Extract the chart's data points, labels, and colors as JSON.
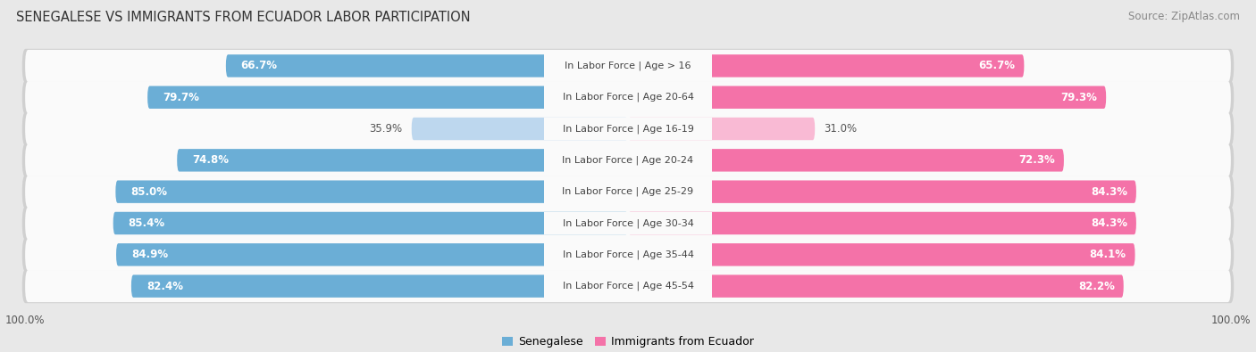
{
  "title": "SENEGALESE VS IMMIGRANTS FROM ECUADOR LABOR PARTICIPATION",
  "source": "Source: ZipAtlas.com",
  "categories": [
    "In Labor Force | Age > 16",
    "In Labor Force | Age 20-64",
    "In Labor Force | Age 16-19",
    "In Labor Force | Age 20-24",
    "In Labor Force | Age 25-29",
    "In Labor Force | Age 30-34",
    "In Labor Force | Age 35-44",
    "In Labor Force | Age 45-54"
  ],
  "senegalese_values": [
    66.7,
    79.7,
    35.9,
    74.8,
    85.0,
    85.4,
    84.9,
    82.4
  ],
  "ecuador_values": [
    65.7,
    79.3,
    31.0,
    72.3,
    84.3,
    84.3,
    84.1,
    82.2
  ],
  "senegalese_color": "#6BAED6",
  "senegalese_color_light": "#BDD7EE",
  "ecuador_color": "#F472A8",
  "ecuador_color_light": "#F9BAD4",
  "row_bg_color": "#EFEFEF",
  "row_inner_color": "#FAFAFA",
  "background_color": "#E8E8E8",
  "title_color": "#333333",
  "source_color": "#888888",
  "legend_label_senegalese": "Senegalese",
  "legend_label_ecuador": "Immigrants from Ecuador",
  "max_val": 100.0
}
